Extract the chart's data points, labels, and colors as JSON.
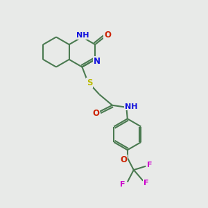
{
  "bg_color": "#e8eae8",
  "bond_color": "#4a7a50",
  "bond_width": 1.5,
  "atom_colors": {
    "N": "#1010dd",
    "O": "#cc2200",
    "S": "#bbbb00",
    "F": "#cc00cc",
    "H": "#5599aa",
    "C": "#000000"
  },
  "font_size": 8.5,
  "fig_size": [
    3.0,
    3.0
  ],
  "dpi": 100,
  "xlim": [
    0,
    10
  ],
  "ylim": [
    0,
    10
  ]
}
